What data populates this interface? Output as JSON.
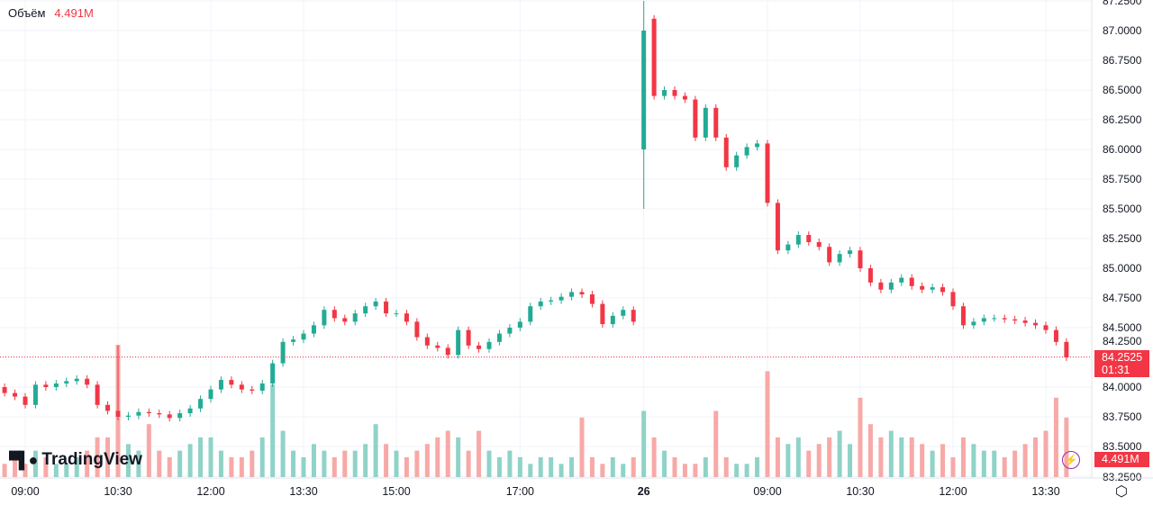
{
  "legend": {
    "label": "Объём",
    "value": "4.491M"
  },
  "logo": "TradingView",
  "current_price": "84.2525",
  "countdown": "01:31",
  "volume_tag": "4.491M",
  "chart_data": {
    "type": "candlestick",
    "interval_minutes": 10,
    "price_ticks": [
      "87.2500",
      "87.0000",
      "86.7500",
      "86.5000",
      "86.2500",
      "86.0000",
      "85.7500",
      "85.5000",
      "85.2500",
      "85.0000",
      "84.7500",
      "84.5000",
      "84.2500",
      "84.0000",
      "83.7500",
      "83.5000",
      "83.2500"
    ],
    "price_tick_values": [
      87.25,
      87,
      86.75,
      86.5,
      86.25,
      86,
      85.75,
      85.5,
      85.25,
      85,
      84.75,
      84.5,
      84.25,
      84,
      83.75,
      83.5,
      83.25
    ],
    "time_labels": [
      {
        "t": "09:00",
        "m": 540
      },
      {
        "t": "10:30",
        "m": 630
      },
      {
        "t": "12:00",
        "m": 720
      },
      {
        "t": "13:30",
        "m": 810
      },
      {
        "t": "15:00",
        "m": 900
      },
      {
        "t": "17:00",
        "m": 1020
      },
      {
        "t": "26",
        "m": 1140
      },
      {
        "t": "09:00",
        "m": 1260
      },
      {
        "t": "10:30",
        "m": 1350
      },
      {
        "t": "12:00",
        "m": 1440
      },
      {
        "t": "13:30",
        "m": 1530
      }
    ],
    "day1_start_minute": 520,
    "day2_start_minute": 1140,
    "day1_first_open": 84.0,
    "day2_first_open": 86.0,
    "special": {
      "day2_first": {
        "high": 87.25,
        "low": 85.5
      },
      "day2_second_open": 87.1,
      "spike_candle_high": 84.35
    },
    "day1_close": [
      83.95,
      83.92,
      83.85,
      84.02,
      84.0,
      84.03,
      84.05,
      84.07,
      84.02,
      83.85,
      83.8,
      83.75,
      83.76,
      83.79,
      83.78,
      83.77,
      83.74,
      83.78,
      83.82,
      83.9,
      83.98,
      84.06,
      84.02,
      83.98,
      83.97,
      84.03,
      84.2,
      84.38,
      84.4,
      84.45,
      84.52,
      84.65,
      84.58,
      84.55,
      84.62,
      84.68,
      84.72,
      84.62,
      84.62,
      84.55,
      84.42,
      84.35,
      84.33,
      84.27,
      84.48,
      84.35,
      84.32,
      84.38,
      84.45,
      84.5,
      84.55,
      84.68,
      84.72,
      84.73,
      84.76,
      84.8,
      84.78,
      84.7,
      84.53,
      84.6,
      84.65,
      84.55
    ],
    "day2_close": [
      87.0,
      86.45,
      86.5,
      86.45,
      86.42,
      86.1,
      86.35,
      86.1,
      85.85,
      85.95,
      86.02,
      86.05,
      85.55,
      85.15,
      85.2,
      85.28,
      85.22,
      85.18,
      85.05,
      85.12,
      85.15,
      85.0,
      84.88,
      84.82,
      84.88,
      84.92,
      84.85,
      84.82,
      84.84,
      84.8,
      84.68,
      84.52,
      84.55,
      84.58,
      84.58,
      84.57,
      84.56,
      84.54,
      84.52,
      84.48,
      84.38,
      84.25
    ],
    "day1_volume": [
      1,
      1.5,
      1,
      2,
      1.5,
      1,
      1,
      1.5,
      2,
      3,
      3,
      10,
      2.5,
      2,
      4,
      2,
      1.5,
      2,
      2.5,
      3,
      3,
      2,
      1.5,
      1.5,
      2,
      3,
      7,
      3.5,
      2,
      1.5,
      2.5,
      2,
      1.5,
      2,
      2,
      2.5,
      4,
      2.5,
      2,
      1.5,
      2,
      2.5,
      3,
      3.5,
      3,
      2,
      3.5,
      2,
      1.5,
      2,
      1.5,
      1,
      1.5,
      1.5,
      1,
      1.5,
      4.5,
      1.5,
      1,
      1.5,
      1,
      1.5
    ],
    "day2_volume": [
      5,
      3,
      2,
      1.5,
      1,
      1,
      1.5,
      5,
      1.5,
      1,
      1,
      1.5,
      8,
      3,
      2.5,
      3,
      2,
      2.5,
      3,
      3.5,
      2.5,
      6,
      4,
      3,
      3.5,
      3,
      3,
      2.5,
      2,
      2.5,
      1.5,
      3,
      2.5,
      2,
      2,
      1.5,
      2,
      2.5,
      3,
      3.5,
      6,
      4.5
    ],
    "colors": {
      "up": "#22ab94",
      "down": "#f23645",
      "vol_up": "#8fd3c8",
      "vol_down": "#f7a9a7"
    }
  }
}
